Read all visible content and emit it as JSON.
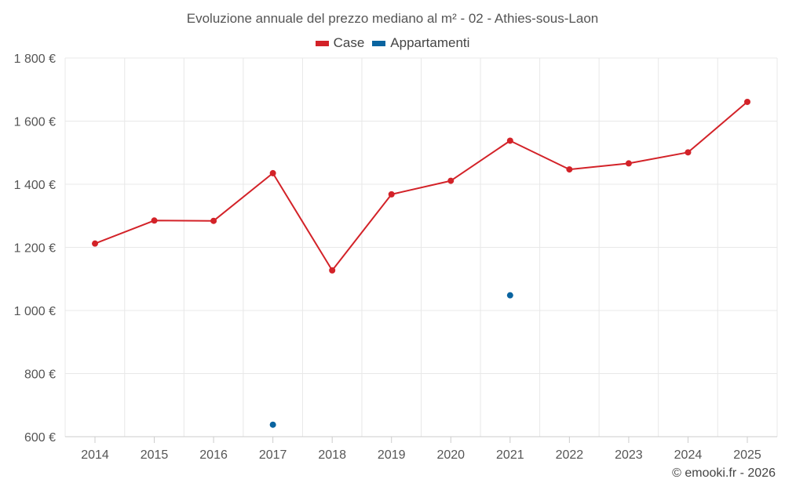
{
  "colors": {
    "case": "#d32228",
    "appartamenti": "#0a64a0",
    "grid": "#e8e8e8",
    "axis": "#cccccc"
  },
  "chart_data": {
    "type": "line",
    "title": "Evoluzione annuale del prezzo mediano al m² - 02 - Athies-sous-Laon",
    "categories": [
      "2014",
      "2015",
      "2016",
      "2017",
      "2018",
      "2019",
      "2020",
      "2021",
      "2022",
      "2023",
      "2024",
      "2025"
    ],
    "series": [
      {
        "name": "Case",
        "color": "#d32228",
        "values": [
          1212,
          1285,
          1284,
          1435,
          1127,
          1368,
          1411,
          1538,
          1447,
          1466,
          1501,
          1661
        ]
      },
      {
        "name": "Appartamenti",
        "color": "#0a64a0",
        "values": [
          null,
          null,
          null,
          638,
          null,
          null,
          null,
          1048,
          null,
          null,
          null,
          null
        ]
      }
    ],
    "ylim": [
      600,
      1800
    ],
    "yticks": [
      600,
      800,
      1000,
      1200,
      1400,
      1600,
      1800
    ],
    "ytick_labels": [
      "600 €",
      "800 €",
      "1 000 €",
      "1 200 €",
      "1 400 €",
      "1 600 €",
      "1 800 €"
    ],
    "xlabel": "",
    "ylabel": "",
    "grid": true,
    "legend_position": "top-center"
  },
  "credit": "© emooki.fr - 2026"
}
